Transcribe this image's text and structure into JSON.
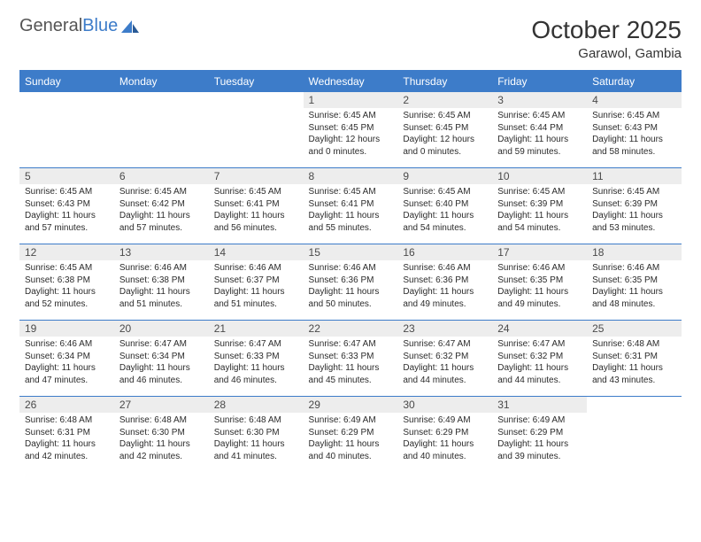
{
  "brand": {
    "part1": "General",
    "part2": "Blue"
  },
  "title": "October 2025",
  "location": "Garawol, Gambia",
  "colors": {
    "accent": "#3d7cc9",
    "header_bg": "#3d7cc9",
    "daynum_bg": "#ededed"
  },
  "day_headers": [
    "Sunday",
    "Monday",
    "Tuesday",
    "Wednesday",
    "Thursday",
    "Friday",
    "Saturday"
  ],
  "weeks": [
    [
      null,
      null,
      null,
      {
        "n": "1",
        "sr": "6:45 AM",
        "ss": "6:45 PM",
        "dl": "12 hours and 0 minutes."
      },
      {
        "n": "2",
        "sr": "6:45 AM",
        "ss": "6:45 PM",
        "dl": "12 hours and 0 minutes."
      },
      {
        "n": "3",
        "sr": "6:45 AM",
        "ss": "6:44 PM",
        "dl": "11 hours and 59 minutes."
      },
      {
        "n": "4",
        "sr": "6:45 AM",
        "ss": "6:43 PM",
        "dl": "11 hours and 58 minutes."
      }
    ],
    [
      {
        "n": "5",
        "sr": "6:45 AM",
        "ss": "6:43 PM",
        "dl": "11 hours and 57 minutes."
      },
      {
        "n": "6",
        "sr": "6:45 AM",
        "ss": "6:42 PM",
        "dl": "11 hours and 57 minutes."
      },
      {
        "n": "7",
        "sr": "6:45 AM",
        "ss": "6:41 PM",
        "dl": "11 hours and 56 minutes."
      },
      {
        "n": "8",
        "sr": "6:45 AM",
        "ss": "6:41 PM",
        "dl": "11 hours and 55 minutes."
      },
      {
        "n": "9",
        "sr": "6:45 AM",
        "ss": "6:40 PM",
        "dl": "11 hours and 54 minutes."
      },
      {
        "n": "10",
        "sr": "6:45 AM",
        "ss": "6:39 PM",
        "dl": "11 hours and 54 minutes."
      },
      {
        "n": "11",
        "sr": "6:45 AM",
        "ss": "6:39 PM",
        "dl": "11 hours and 53 minutes."
      }
    ],
    [
      {
        "n": "12",
        "sr": "6:45 AM",
        "ss": "6:38 PM",
        "dl": "11 hours and 52 minutes."
      },
      {
        "n": "13",
        "sr": "6:46 AM",
        "ss": "6:38 PM",
        "dl": "11 hours and 51 minutes."
      },
      {
        "n": "14",
        "sr": "6:46 AM",
        "ss": "6:37 PM",
        "dl": "11 hours and 51 minutes."
      },
      {
        "n": "15",
        "sr": "6:46 AM",
        "ss": "6:36 PM",
        "dl": "11 hours and 50 minutes."
      },
      {
        "n": "16",
        "sr": "6:46 AM",
        "ss": "6:36 PM",
        "dl": "11 hours and 49 minutes."
      },
      {
        "n": "17",
        "sr": "6:46 AM",
        "ss": "6:35 PM",
        "dl": "11 hours and 49 minutes."
      },
      {
        "n": "18",
        "sr": "6:46 AM",
        "ss": "6:35 PM",
        "dl": "11 hours and 48 minutes."
      }
    ],
    [
      {
        "n": "19",
        "sr": "6:46 AM",
        "ss": "6:34 PM",
        "dl": "11 hours and 47 minutes."
      },
      {
        "n": "20",
        "sr": "6:47 AM",
        "ss": "6:34 PM",
        "dl": "11 hours and 46 minutes."
      },
      {
        "n": "21",
        "sr": "6:47 AM",
        "ss": "6:33 PM",
        "dl": "11 hours and 46 minutes."
      },
      {
        "n": "22",
        "sr": "6:47 AM",
        "ss": "6:33 PM",
        "dl": "11 hours and 45 minutes."
      },
      {
        "n": "23",
        "sr": "6:47 AM",
        "ss": "6:32 PM",
        "dl": "11 hours and 44 minutes."
      },
      {
        "n": "24",
        "sr": "6:47 AM",
        "ss": "6:32 PM",
        "dl": "11 hours and 44 minutes."
      },
      {
        "n": "25",
        "sr": "6:48 AM",
        "ss": "6:31 PM",
        "dl": "11 hours and 43 minutes."
      }
    ],
    [
      {
        "n": "26",
        "sr": "6:48 AM",
        "ss": "6:31 PM",
        "dl": "11 hours and 42 minutes."
      },
      {
        "n": "27",
        "sr": "6:48 AM",
        "ss": "6:30 PM",
        "dl": "11 hours and 42 minutes."
      },
      {
        "n": "28",
        "sr": "6:48 AM",
        "ss": "6:30 PM",
        "dl": "11 hours and 41 minutes."
      },
      {
        "n": "29",
        "sr": "6:49 AM",
        "ss": "6:29 PM",
        "dl": "11 hours and 40 minutes."
      },
      {
        "n": "30",
        "sr": "6:49 AM",
        "ss": "6:29 PM",
        "dl": "11 hours and 40 minutes."
      },
      {
        "n": "31",
        "sr": "6:49 AM",
        "ss": "6:29 PM",
        "dl": "11 hours and 39 minutes."
      },
      null
    ]
  ],
  "labels": {
    "sunrise": "Sunrise:",
    "sunset": "Sunset:",
    "daylight": "Daylight:"
  }
}
